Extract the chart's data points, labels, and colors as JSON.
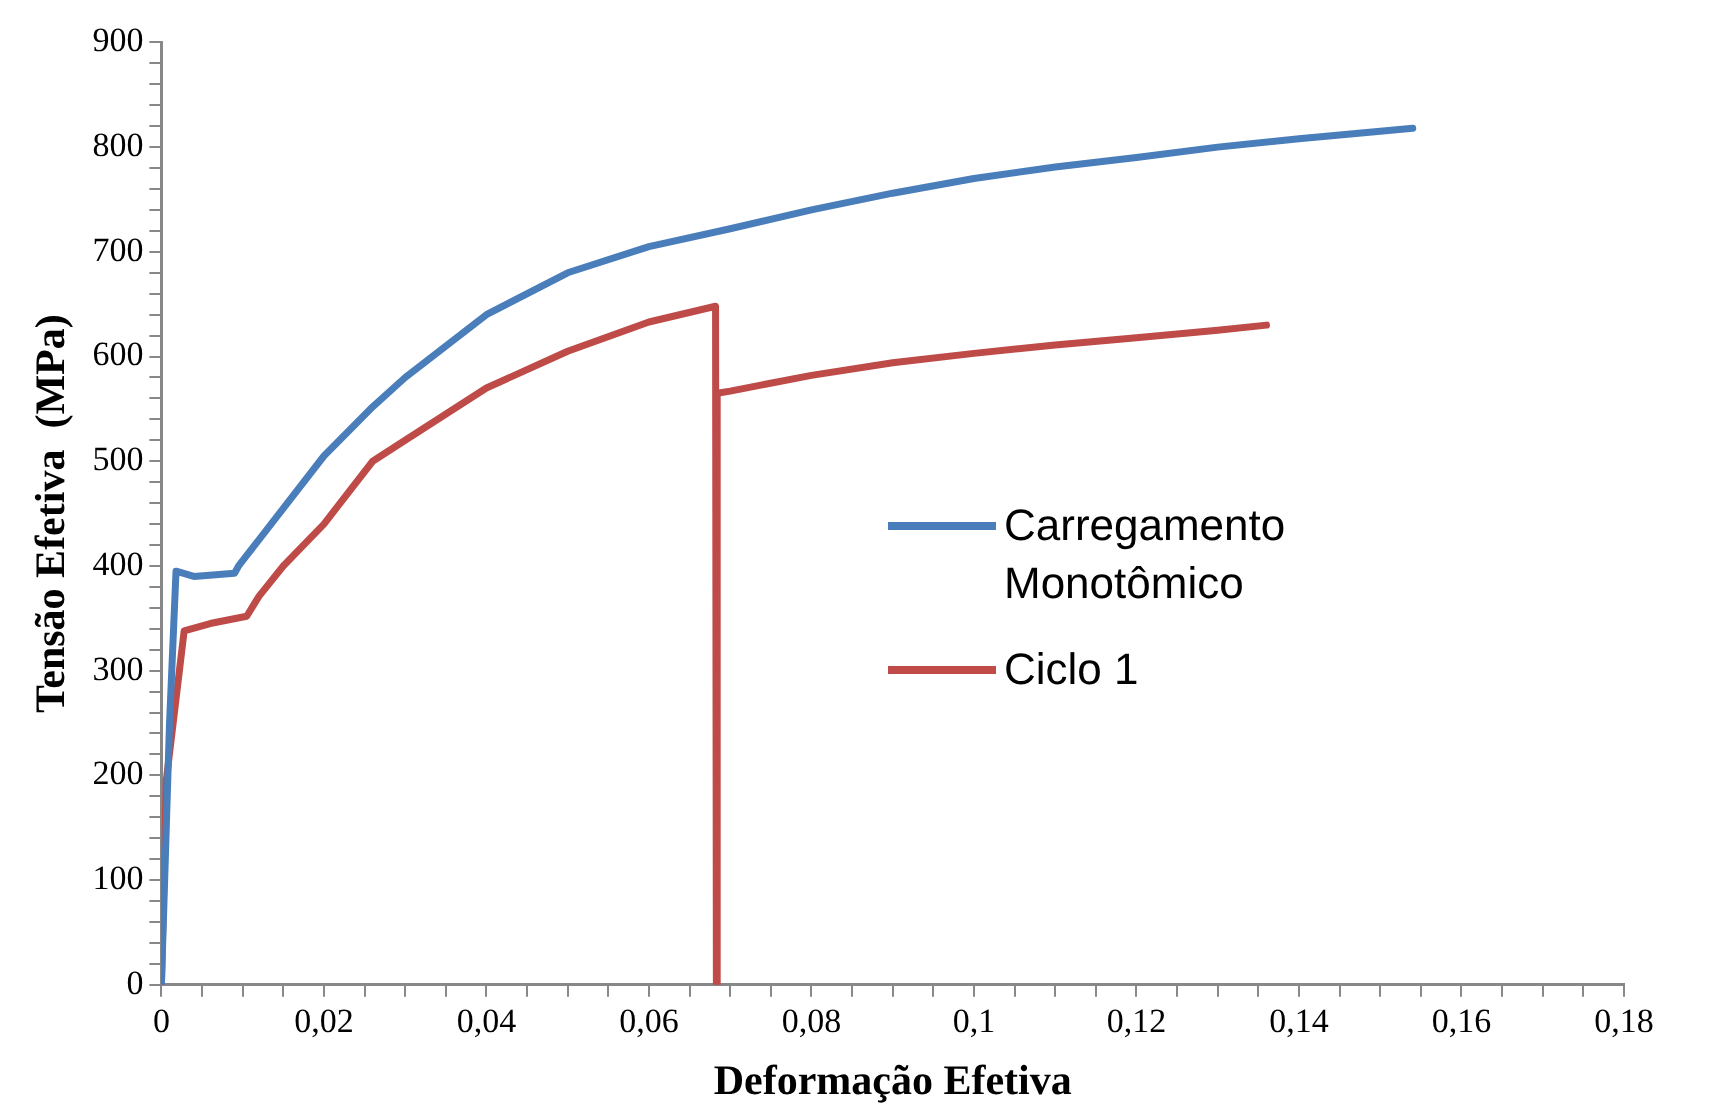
{
  "chart_data": {
    "type": "line",
    "xlabel": "Deformação Efetiva",
    "ylabel": "Tensão Efetiva  (MPa)",
    "xlim": [
      0,
      0.18
    ],
    "ylim": [
      0,
      900
    ],
    "xticks": [
      0,
      {
        "value": 0.005,
        "label": null
      },
      {
        "value": 0.01,
        "label": null
      },
      {
        "value": 0.015,
        "label": null
      },
      {
        "value": 0.02,
        "label": "0,02"
      },
      {
        "value": 0.025,
        "label": null
      },
      {
        "value": 0.03,
        "label": null
      },
      {
        "value": 0.035,
        "label": null
      },
      {
        "value": 0.04,
        "label": "0,04"
      },
      {
        "value": 0.045,
        "label": null
      },
      {
        "value": 0.05,
        "label": null
      },
      {
        "value": 0.055,
        "label": null
      },
      {
        "value": 0.06,
        "label": "0,06"
      },
      {
        "value": 0.065,
        "label": null
      },
      {
        "value": 0.07,
        "label": null
      },
      {
        "value": 0.075,
        "label": null
      },
      {
        "value": 0.08,
        "label": "0,08"
      },
      {
        "value": 0.085,
        "label": null
      },
      {
        "value": 0.09,
        "label": null
      },
      {
        "value": 0.095,
        "label": null
      },
      {
        "value": 0.1,
        "label": "0,1"
      },
      {
        "value": 0.105,
        "label": null
      },
      {
        "value": 0.11,
        "label": null
      },
      {
        "value": 0.115,
        "label": null
      },
      {
        "value": 0.12,
        "label": "0,12"
      },
      {
        "value": 0.125,
        "label": null
      },
      {
        "value": 0.13,
        "label": null
      },
      {
        "value": 0.135,
        "label": null
      },
      {
        "value": 0.14,
        "label": "0,14"
      },
      {
        "value": 0.145,
        "label": null
      },
      {
        "value": 0.15,
        "label": null
      },
      {
        "value": 0.155,
        "label": null
      },
      {
        "value": 0.16,
        "label": "0,16"
      },
      {
        "value": 0.165,
        "label": null
      },
      {
        "value": 0.17,
        "label": null
      },
      {
        "value": 0.175,
        "label": null
      },
      {
        "value": 0.18,
        "label": "0,18"
      }
    ],
    "yticks": [
      0,
      {
        "value": 20,
        "label": null
      },
      {
        "value": 40,
        "label": null
      },
      {
        "value": 60,
        "label": null
      },
      {
        "value": 80,
        "label": null
      },
      100,
      {
        "value": 120,
        "label": null
      },
      {
        "value": 140,
        "label": null
      },
      {
        "value": 160,
        "label": null
      },
      {
        "value": 180,
        "label": null
      },
      200,
      {
        "value": 220,
        "label": null
      },
      {
        "value": 240,
        "label": null
      },
      {
        "value": 260,
        "label": null
      },
      {
        "value": 280,
        "label": null
      },
      300,
      {
        "value": 320,
        "label": null
      },
      {
        "value": 340,
        "label": null
      },
      {
        "value": 360,
        "label": null
      },
      {
        "value": 380,
        "label": null
      },
      400,
      {
        "value": 420,
        "label": null
      },
      {
        "value": 440,
        "label": null
      },
      {
        "value": 460,
        "label": null
      },
      {
        "value": 480,
        "label": null
      },
      500,
      {
        "value": 520,
        "label": null
      },
      {
        "value": 540,
        "label": null
      },
      {
        "value": 560,
        "label": null
      },
      {
        "value": 580,
        "label": null
      },
      600,
      {
        "value": 620,
        "label": null
      },
      {
        "value": 640,
        "label": null
      },
      {
        "value": 660,
        "label": null
      },
      {
        "value": 680,
        "label": null
      },
      700,
      {
        "value": 720,
        "label": null
      },
      {
        "value": 740,
        "label": null
      },
      {
        "value": 760,
        "label": null
      },
      {
        "value": 780,
        "label": null
      },
      800,
      {
        "value": 820,
        "label": null
      },
      {
        "value": 840,
        "label": null
      },
      {
        "value": 860,
        "label": null
      },
      {
        "value": 880,
        "label": null
      },
      900
    ],
    "grid": false,
    "legend": "center",
    "marker": "none",
    "line_style": "solid",
    "series": [
      {
        "name": "Carregamento Monotômico",
        "color": "#4a7ebb",
        "x": [
          0,
          0.001,
          0.0018,
          0.004,
          0.009,
          0.0095,
          0.01,
          0.015,
          0.02,
          0.026,
          0.03,
          0.04,
          0.05,
          0.06,
          0.07,
          0.08,
          0.09,
          0.1,
          0.11,
          0.12,
          0.13,
          0.14,
          0.154
        ],
        "values": [
          0,
          250,
          395,
          390,
          393,
          400,
          405,
          455,
          505,
          552,
          580,
          640,
          680,
          705,
          722,
          740,
          756,
          770,
          781,
          790,
          800,
          808,
          818
        ]
      },
      {
        "name": "Ciclo 1",
        "color": "#be4b48",
        "x": [
          0,
          0.0006,
          0.0028,
          0.006,
          0.0105,
          0.012,
          0.015,
          0.02,
          0.026,
          0.03,
          0.04,
          0.05,
          0.06,
          0.0682,
          0.0683,
          0.0684,
          0.07,
          0.08,
          0.09,
          0.1,
          0.11,
          0.12,
          0.13,
          0.136
        ],
        "values": [
          0,
          195,
          338,
          345,
          352,
          371,
          400,
          440,
          500,
          520,
          570,
          605,
          633,
          648,
          0,
          565,
          567,
          582,
          594,
          603,
          611,
          618,
          625,
          630
        ]
      }
    ]
  }
}
